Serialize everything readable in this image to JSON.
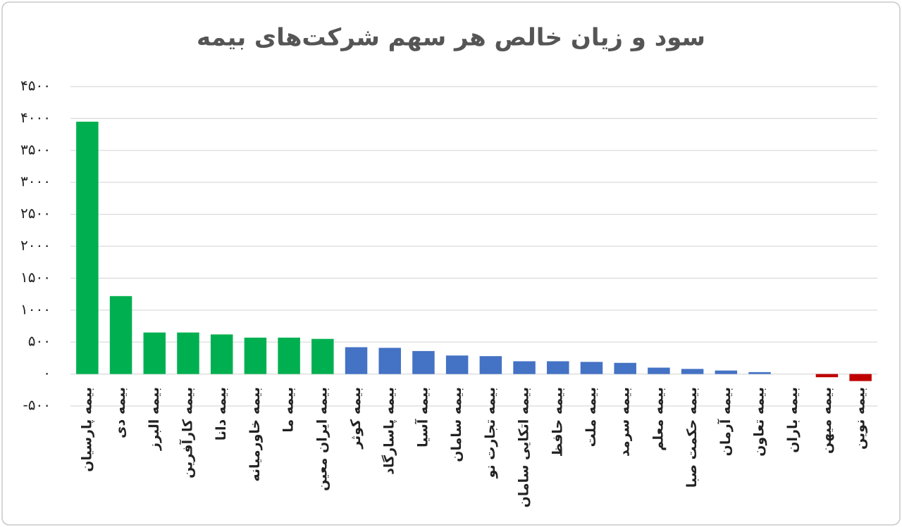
{
  "chart_data": {
    "type": "bar",
    "title": "سود و زیان خالص هر سهم شرکت‌های بیمه",
    "categories": [
      "بیمه پارسیان",
      "بیمه دی",
      "بیمه البرز",
      "بیمه کارآفرین",
      "بیمه دانا",
      "بیمه خاورمیانه",
      "بیمه ما",
      "بیمه ایران معین",
      "بیمه کوثر",
      "بیمه پاسارگاد",
      "بیمه آسیا",
      "بیمه سامان",
      "بیمه تجارت نو",
      "بیمه اتکایی سامان",
      "بیمه حافظ",
      "بیمه ملت",
      "بیمه سرمد",
      "بیمه معلم",
      "بیمه حکمت صبا",
      "بیمه آرمان",
      "بیمه تعاون",
      "بیمه باران",
      "بیمه میهن",
      "بیمه نوین"
    ],
    "values": [
      3950,
      1220,
      650,
      650,
      620,
      570,
      570,
      550,
      420,
      410,
      360,
      290,
      280,
      200,
      200,
      190,
      175,
      100,
      80,
      55,
      30,
      0,
      -50,
      -110
    ],
    "colors": [
      "#00b050",
      "#00b050",
      "#00b050",
      "#00b050",
      "#00b050",
      "#00b050",
      "#00b050",
      "#00b050",
      "#4472c4",
      "#4472c4",
      "#4472c4",
      "#4472c4",
      "#4472c4",
      "#4472c4",
      "#4472c4",
      "#4472c4",
      "#4472c4",
      "#4472c4",
      "#4472c4",
      "#4472c4",
      "#4472c4",
      "#4472c4",
      "#c00000",
      "#c00000"
    ],
    "ylim": [
      -500,
      4500
    ],
    "yticks": [
      {
        "value": -500,
        "label": "-۵۰۰"
      },
      {
        "value": 0,
        "label": "۰"
      },
      {
        "value": 500,
        "label": "۵۰۰"
      },
      {
        "value": 1000,
        "label": "۱۰۰۰"
      },
      {
        "value": 1500,
        "label": "۱۵۰۰"
      },
      {
        "value": 2000,
        "label": "۲۰۰۰"
      },
      {
        "value": 2500,
        "label": "۲۵۰۰"
      },
      {
        "value": 3000,
        "label": "۳۰۰۰"
      },
      {
        "value": 3500,
        "label": "۳۵۰۰"
      },
      {
        "value": 4000,
        "label": "۴۰۰۰"
      },
      {
        "value": 4500,
        "label": "۴۵۰۰"
      }
    ],
    "grid": true
  }
}
